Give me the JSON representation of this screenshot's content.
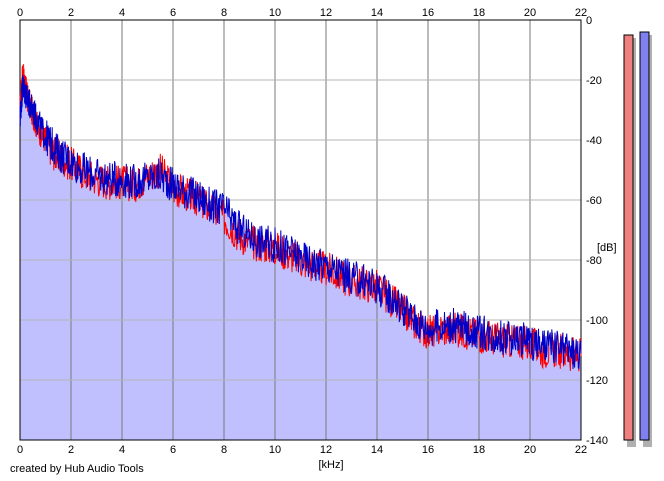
{
  "credit": "created by Hub Audio Tools",
  "chart_data": {
    "type": "line",
    "xlabel": "[kHz]",
    "ylabel": "[dB]",
    "xlim": [
      0,
      22
    ],
    "ylim": [
      -140,
      0
    ],
    "x_ticks": [
      0,
      2,
      4,
      6,
      8,
      10,
      12,
      14,
      16,
      18,
      20,
      22
    ],
    "y_ticks": [
      0,
      -20,
      -40,
      -60,
      -80,
      -100,
      -120,
      -140
    ],
    "grid": true,
    "colors": {
      "fill": "#c0c0ff",
      "series_red": "#ff0000",
      "series_blue": "#0000c8",
      "grid": "#b4b4b4",
      "major_grid": "#787878"
    },
    "series": [
      {
        "color": "#ff0000",
        "x": [
          0.0,
          0.1,
          0.2,
          0.3,
          0.5,
          0.7,
          1.0,
          1.3,
          1.6,
          2.0,
          2.5,
          3.0,
          3.5,
          4.0,
          4.5,
          5.0,
          5.5,
          6.0,
          6.5,
          7.0,
          7.5,
          8.0,
          8.5,
          9.0,
          9.5,
          10.0,
          10.5,
          11.0,
          11.5,
          12.0,
          12.5,
          13.0,
          13.5,
          14.0,
          14.5,
          15.0,
          15.5,
          16.0,
          16.5,
          17.0,
          17.5,
          18.0,
          18.5,
          19.0,
          19.5,
          20.0,
          20.5,
          21.0,
          21.5,
          22.0
        ],
        "values": [
          -30,
          -18,
          -22,
          -26,
          -31,
          -36,
          -40,
          -44,
          -46,
          -48,
          -51,
          -53,
          -54,
          -54,
          -55,
          -52,
          -50,
          -56,
          -58,
          -60,
          -63,
          -66,
          -71,
          -74,
          -75,
          -76,
          -78,
          -80,
          -82,
          -83,
          -85,
          -87,
          -88,
          -89,
          -93,
          -97,
          -101,
          -104,
          -103,
          -103,
          -104,
          -105,
          -106,
          -107,
          -107,
          -108,
          -110,
          -110,
          -111,
          -112
        ]
      },
      {
        "color": "#0000c8",
        "x": [
          0.0,
          0.1,
          0.2,
          0.3,
          0.5,
          0.7,
          1.0,
          1.3,
          1.6,
          2.0,
          2.5,
          3.0,
          3.5,
          4.0,
          4.5,
          5.0,
          5.5,
          6.0,
          6.5,
          7.0,
          7.5,
          8.0,
          8.5,
          9.0,
          9.5,
          10.0,
          10.5,
          11.0,
          11.5,
          12.0,
          12.5,
          13.0,
          13.5,
          14.0,
          14.5,
          15.0,
          15.5,
          16.0,
          16.5,
          17.0,
          17.5,
          18.0,
          18.5,
          19.0,
          19.5,
          20.0,
          20.5,
          21.0,
          21.5,
          22.0
        ],
        "values": [
          -33,
          -22,
          -24,
          -27,
          -30,
          -34,
          -39,
          -42,
          -45,
          -47,
          -50,
          -52,
          -53,
          -53,
          -54,
          -53,
          -52,
          -55,
          -57,
          -59,
          -62,
          -63,
          -69,
          -72,
          -74,
          -75,
          -77,
          -79,
          -81,
          -82,
          -84,
          -86,
          -87,
          -89,
          -92,
          -96,
          -100,
          -103,
          -102,
          -102,
          -103,
          -104,
          -105,
          -106,
          -106,
          -107,
          -109,
          -109,
          -110,
          -111
        ]
      }
    ],
    "level_meters": [
      {
        "color": "#f08080",
        "value": -5
      },
      {
        "color": "#8080f0",
        "value": -4
      }
    ]
  }
}
